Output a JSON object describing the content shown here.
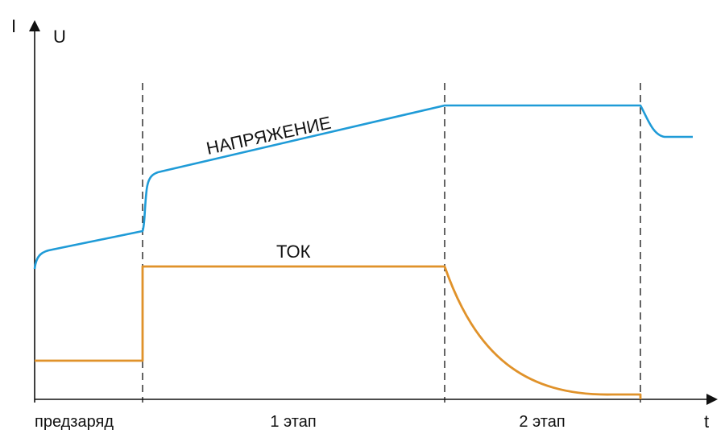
{
  "diagram": {
    "axes": {
      "y_label_current": "I",
      "y_label_voltage": "U",
      "x_label": "t"
    },
    "curves": {
      "voltage": {
        "label": "НАПРЯЖЕНИЕ",
        "color": "#1f9bd7"
      },
      "current": {
        "label": "ТОК",
        "color": "#e0922a"
      }
    },
    "phases": [
      {
        "label": "предзаряд"
      },
      {
        "label": "1 этап"
      },
      {
        "label": "2 этап"
      }
    ],
    "colors": {
      "axis": "#111111",
      "divider": "#222222"
    }
  }
}
